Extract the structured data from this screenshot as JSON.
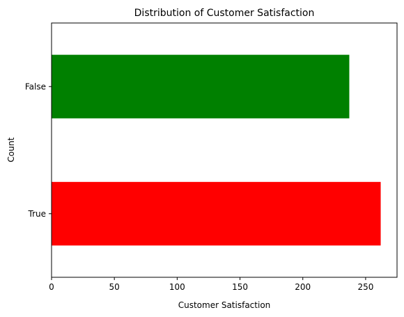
{
  "chart_data": {
    "type": "bar",
    "orientation": "horizontal",
    "title": "Distribution of Customer Satisfaction",
    "xlabel": "Customer Satisfaction",
    "ylabel": "Count",
    "categories": [
      "True",
      "False"
    ],
    "values": [
      262,
      237
    ],
    "colors": [
      "#ff0000",
      "#008000"
    ],
    "xlim": [
      0,
      275
    ],
    "xticks": [
      0,
      50,
      100,
      150,
      200,
      250
    ],
    "grid": false,
    "legend": "none"
  }
}
